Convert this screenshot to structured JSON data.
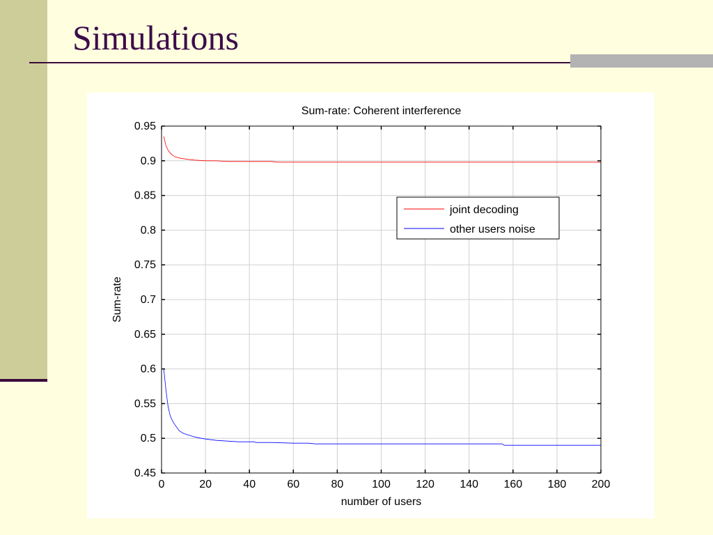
{
  "slide": {
    "title": "Simulations"
  },
  "colors": {
    "background": "#ffffe0",
    "sidebar": "#cdcd9a",
    "title_text": "#3d0d4a",
    "rule": "#3a0a3a",
    "accent_bar": "#b3b3b3"
  },
  "chart_data": {
    "type": "line",
    "title": "Sum-rate: Coherent interference",
    "xlabel": "number of users",
    "ylabel": "Sum-rate",
    "xlim": [
      0,
      200
    ],
    "ylim": [
      0.45,
      0.95
    ],
    "xticks": [
      0,
      20,
      40,
      60,
      80,
      100,
      120,
      140,
      160,
      180,
      200
    ],
    "yticks": [
      0.45,
      0.5,
      0.55,
      0.6,
      0.65,
      0.7,
      0.75,
      0.8,
      0.85,
      0.9,
      0.95
    ],
    "xtick_labels": [
      "0",
      "20",
      "40",
      "60",
      "80",
      "100",
      "120",
      "140",
      "160",
      "180",
      "200"
    ],
    "ytick_labels": [
      "0.45",
      "0.5",
      "0.55",
      "0.6",
      "0.65",
      "0.7",
      "0.75",
      "0.8",
      "0.85",
      "0.9",
      "0.95"
    ],
    "grid": true,
    "legend_position": "upper-right",
    "series": [
      {
        "name": "joint decoding",
        "color": "#ff0000",
        "x": [
          1,
          2,
          3,
          4,
          5,
          6,
          8,
          10,
          12,
          15,
          20,
          25,
          30,
          40,
          50,
          53,
          60,
          80,
          100,
          150,
          200
        ],
        "values": [
          0.935,
          0.922,
          0.915,
          0.911,
          0.908,
          0.906,
          0.904,
          0.903,
          0.902,
          0.901,
          0.9,
          0.9,
          0.899,
          0.899,
          0.899,
          0.898,
          0.898,
          0.898,
          0.898,
          0.898,
          0.898
        ]
      },
      {
        "name": "other users noise",
        "color": "#0000ff",
        "x": [
          1,
          2,
          3,
          4,
          5,
          6,
          8,
          10,
          12,
          15,
          18,
          20,
          25,
          30,
          35,
          42,
          43,
          50,
          60,
          67,
          70,
          80,
          100,
          120,
          140,
          155,
          156,
          160,
          180,
          200
        ],
        "values": [
          0.6,
          0.57,
          0.545,
          0.532,
          0.525,
          0.52,
          0.511,
          0.507,
          0.505,
          0.502,
          0.5,
          0.499,
          0.497,
          0.496,
          0.495,
          0.495,
          0.494,
          0.494,
          0.493,
          0.493,
          0.492,
          0.492,
          0.492,
          0.492,
          0.492,
          0.492,
          0.49,
          0.49,
          0.49,
          0.49
        ]
      }
    ]
  }
}
